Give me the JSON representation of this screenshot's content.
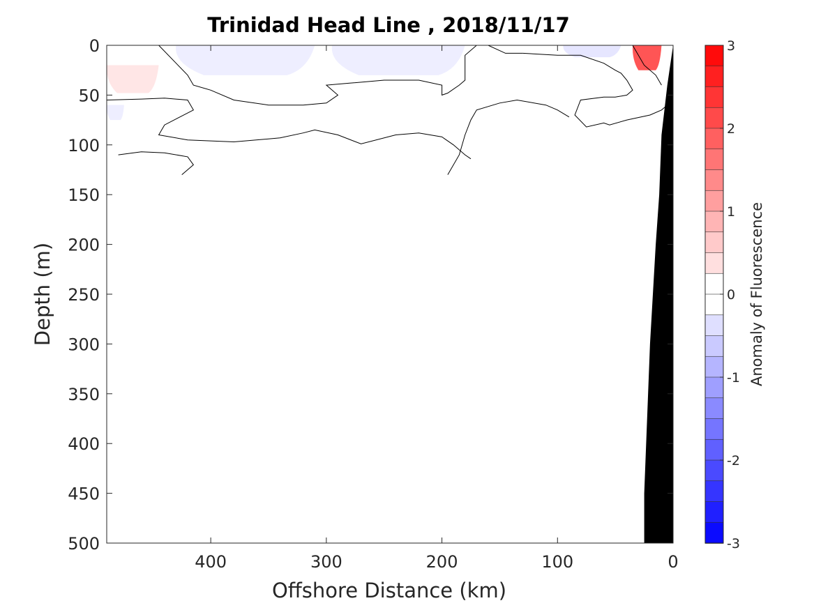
{
  "chart_data": {
    "type": "contour",
    "title": "Trinidad Head Line , 2018/11/17",
    "xlabel": "Offshore Distance (km)",
    "ylabel": "Depth (m)",
    "xlim": [
      490,
      0
    ],
    "ylim": [
      0,
      500
    ],
    "x_direction": "reversed",
    "y_direction": "reversed",
    "x_ticks": [
      400,
      300,
      200,
      100,
      0
    ],
    "y_ticks": [
      0,
      50,
      100,
      150,
      200,
      250,
      300,
      350,
      400,
      450,
      500
    ],
    "colorbar": {
      "label": "Anomaly of Fluorescence",
      "range": [
        -3,
        3
      ],
      "ticks": [
        3,
        2,
        1,
        0,
        -1,
        -2,
        -3
      ],
      "levels": 24,
      "color_low": "#0000ff",
      "color_mid": "#ffffff",
      "color_high": "#ff0000"
    },
    "filled_regions": [
      {
        "label": "negative anomaly",
        "approx_value": -0.2,
        "x_range_km": [
          430,
          310
        ],
        "depth_range_m": [
          0,
          30
        ]
      },
      {
        "label": "negative anomaly",
        "approx_value": -0.2,
        "x_range_km": [
          295,
          180
        ],
        "depth_range_m": [
          0,
          30
        ]
      },
      {
        "label": "negative anomaly",
        "approx_value": -0.3,
        "x_range_km": [
          95,
          45
        ],
        "depth_range_m": [
          0,
          12
        ]
      },
      {
        "label": "negative anomaly",
        "approx_value": -0.2,
        "x_range_km": [
          490,
          475
        ],
        "depth_range_m": [
          60,
          75
        ]
      },
      {
        "label": "positive anomaly",
        "approx_value": 0.3,
        "x_range_km": [
          490,
          445
        ],
        "depth_range_m": [
          20,
          48
        ]
      },
      {
        "label": "positive anomaly",
        "approx_value": 2.0,
        "x_range_km": [
          35,
          10
        ],
        "depth_range_m": [
          0,
          25
        ]
      }
    ],
    "zero_contours": [
      {
        "x_km": [
          480,
          460,
          440,
          420,
          415,
          425
        ],
        "depth_m": [
          110,
          107,
          108,
          112,
          120,
          130
        ]
      },
      {
        "x_km": [
          490,
          460,
          440,
          420,
          415,
          440,
          445,
          420,
          400,
          380,
          340,
          320,
          310,
          290,
          270,
          240,
          220,
          200,
          190,
          180,
          175
        ],
        "depth_m": [
          55,
          54,
          53,
          55,
          65,
          80,
          90,
          95,
          96,
          97,
          93,
          88,
          85,
          90,
          99,
          90,
          88,
          92,
          100,
          110,
          114
        ]
      },
      {
        "x_km": [
          445,
          420,
          415,
          400,
          380,
          350,
          320,
          300,
          290,
          300,
          280,
          250,
          220,
          200,
          200,
          195,
          185,
          180,
          180,
          170,
          160,
          145,
          130
        ],
        "depth_m": [
          0,
          30,
          40,
          45,
          55,
          60,
          60,
          58,
          50,
          40,
          38,
          35,
          35,
          40,
          50,
          48,
          40,
          35,
          10,
          0,
          0,
          8,
          8
        ]
      },
      {
        "x_km": [
          130,
          100,
          80,
          60,
          50,
          45,
          40,
          35,
          40,
          50,
          60,
          80,
          85,
          75,
          60,
          55,
          40,
          20,
          10,
          5
        ],
        "depth_m": [
          8,
          10,
          10,
          18,
          25,
          28,
          35,
          45,
          50,
          52,
          52,
          55,
          70,
          82,
          78,
          80,
          75,
          70,
          65,
          60
        ]
      },
      {
        "x_km": [
          195,
          185,
          180,
          175,
          170,
          150,
          135,
          110,
          100,
          90
        ],
        "depth_m": [
          130,
          110,
          90,
          75,
          65,
          58,
          55,
          60,
          65,
          72
        ]
      },
      {
        "x_km": [
          35,
          25,
          15,
          10
        ],
        "depth_m": [
          0,
          20,
          30,
          40
        ]
      }
    ],
    "bathymetry": {
      "fill": "#000000",
      "x_km": [
        0,
        5,
        10,
        12,
        15,
        20,
        25,
        25
      ],
      "depth_m": [
        0,
        40,
        90,
        150,
        200,
        300,
        450,
        500
      ]
    }
  }
}
